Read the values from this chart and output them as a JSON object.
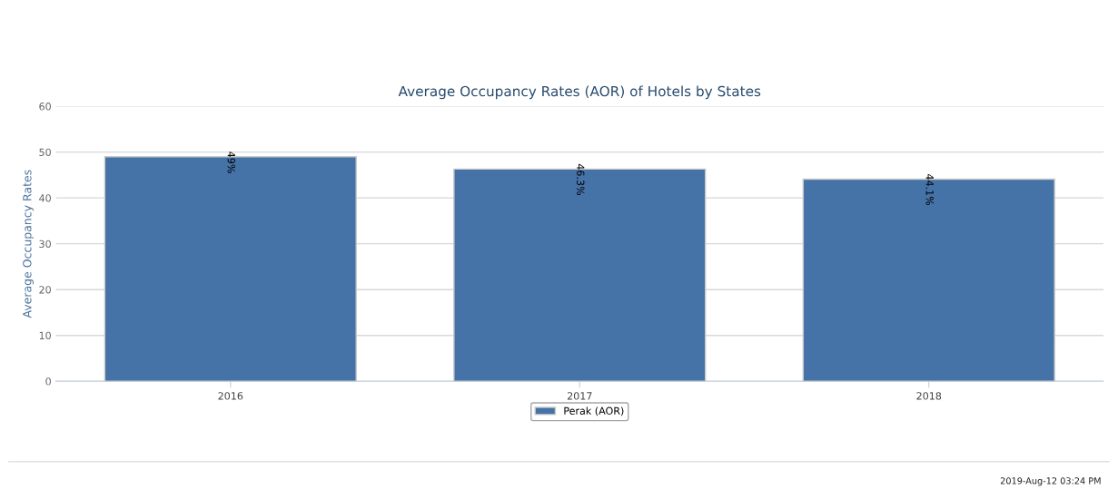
{
  "chart_data": {
    "type": "bar",
    "title": "Average Occupancy Rates (AOR) of Hotels by States",
    "ylabel": "Average Occupancy Rates",
    "categories": [
      "2016",
      "2017",
      "2018"
    ],
    "series": [
      {
        "name": "Perak (AOR)",
        "color": "#4572a7",
        "values": [
          49,
          46.3,
          44.1
        ],
        "value_labels": [
          "49%",
          "46.3%",
          "44.1%"
        ]
      }
    ],
    "ylim": [
      0,
      60
    ],
    "yticks": [
      0,
      10,
      20,
      30,
      40,
      50,
      60
    ],
    "grid": "y",
    "legend": "bottom",
    "annotations": [
      "2019-Aug-12 03:24 PM"
    ]
  }
}
